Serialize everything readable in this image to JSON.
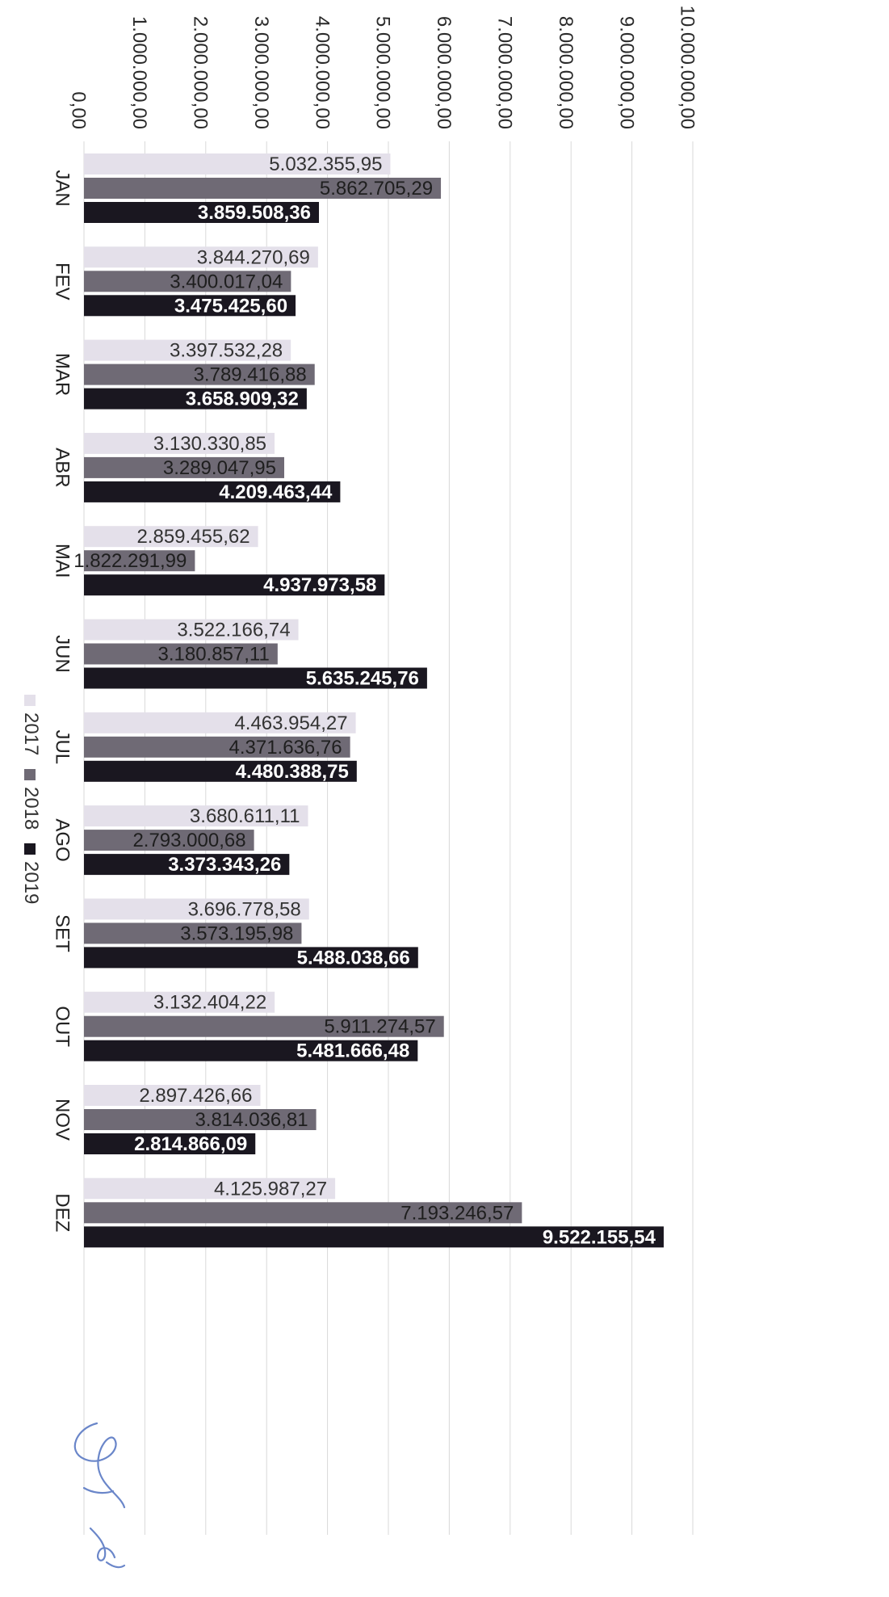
{
  "chart_data": {
    "type": "bar",
    "orientation": "vertical-categories (image rotated 90° clockwise)",
    "title": "",
    "xlabel": "",
    "ylabel": "",
    "categories": [
      "JAN",
      "FEV",
      "MAR",
      "ABR",
      "MAI",
      "JUN",
      "JUL",
      "AGO",
      "SET",
      "OUT",
      "NOV",
      "DEZ"
    ],
    "series": [
      {
        "name": "2017",
        "values": [
          5032355.95,
          3844270.69,
          3397532.28,
          3130330.85,
          2859455.62,
          3522166.74,
          4463954.27,
          3680611.11,
          3696778.58,
          3132404.22,
          2897426.66,
          4125987.27
        ],
        "labels": [
          "5.032.355,95",
          "3.844.270,69",
          "3.397.532,28",
          "3.130.330,85",
          "2.859.455,62",
          "3.522.166,74",
          "4.463.954,27",
          "3.680.611,11",
          "3.696.778,58",
          "3.132.404,22",
          "2.897.426,66",
          "4.125.987,27"
        ],
        "color": "#e4e0ea",
        "label_color": "#333333"
      },
      {
        "name": "2018",
        "values": [
          5862705.29,
          3400017.04,
          3789416.88,
          3289047.95,
          1822291.99,
          3180857.11,
          4371636.76,
          2793000.68,
          3573195.98,
          5911274.57,
          3814036.81,
          7193246.57
        ],
        "labels": [
          "5.862.705,29",
          "3.400.017,04",
          "3.789.416,88",
          "3.289.047,95",
          "1.822.291,99",
          "3.180.857,11",
          "4.371.636,76",
          "2.793.000,68",
          "3.573.195,98",
          "5.911.274,57",
          "3.814.036,81",
          "7.193.246,57"
        ],
        "color": "#6f6a75",
        "label_color": "#1e1e1e"
      },
      {
        "name": "2019",
        "values": [
          3859508.36,
          3475425.6,
          3658909.32,
          4209463.44,
          4937973.58,
          5635245.76,
          4480388.75,
          3373343.26,
          5488038.66,
          5481666.48,
          2814866.09,
          9522155.54
        ],
        "labels": [
          "3.859.508,36",
          "3.475.425,60",
          "3.658.909,32",
          "4.209.463,44",
          "4.937.973,58",
          "5.635.245,76",
          "4.480.388,75",
          "3.373.343,26",
          "5.488.038,66",
          "5.481.666,48",
          "2.814.866,09",
          "9.522.155,54"
        ],
        "color": "#1a1720",
        "label_color": "#ffffff"
      }
    ],
    "value_axis": {
      "min": 0,
      "max": 10000000,
      "ticks": [
        0,
        1000000,
        2000000,
        3000000,
        4000000,
        5000000,
        6000000,
        7000000,
        8000000,
        9000000,
        10000000
      ],
      "tick_labels": [
        "0,00",
        "1.000.000,00",
        "2.000.000,00",
        "3.000.000,00",
        "4.000.000,00",
        "5.000.000,00",
        "6.000.000,00",
        "7.000.000,00",
        "8.000.000,00",
        "9.000.000,00",
        "10.000.000,00"
      ]
    },
    "grid": true,
    "legend": {
      "placement": "left (rotated)",
      "entries": [
        "2017",
        "2018",
        "2019"
      ]
    }
  }
}
